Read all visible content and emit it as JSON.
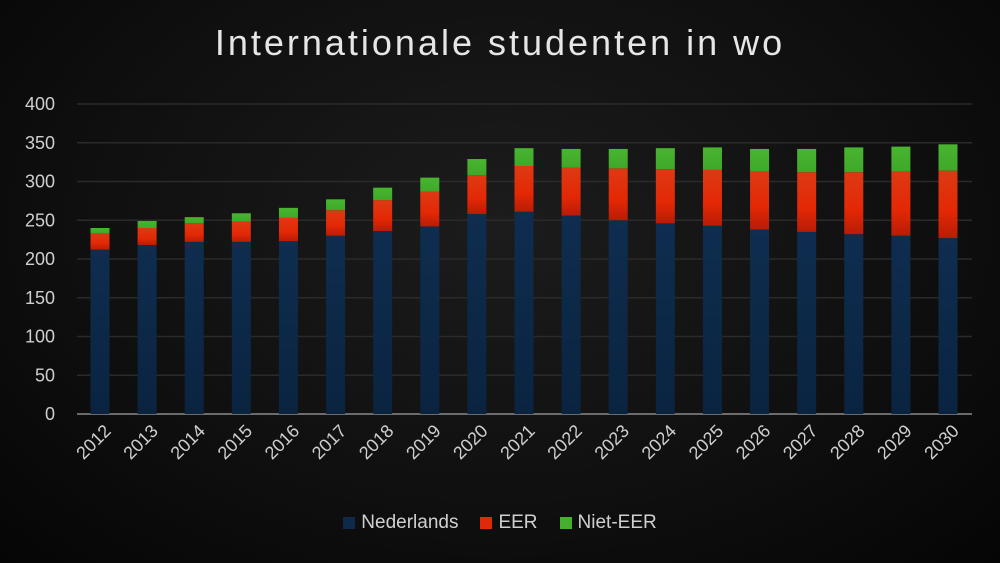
{
  "chart_data": {
    "type": "bar",
    "stacked": true,
    "title": "Internationale studenten in wo",
    "xlabel": "",
    "ylabel": "",
    "ylim": [
      0,
      400
    ],
    "yticks": [
      0,
      50,
      100,
      150,
      200,
      250,
      300,
      350,
      400
    ],
    "grid": true,
    "legend_position": "bottom",
    "categories": [
      "2012",
      "2013",
      "2014",
      "2015",
      "2016",
      "2017",
      "2018",
      "2019",
      "2020",
      "2021",
      "2022",
      "2023",
      "2024",
      "2025",
      "2026",
      "2027",
      "2028",
      "2029",
      "2030"
    ],
    "series": [
      {
        "name": "Nederlands",
        "color": "#0d2a4a",
        "values": [
          212,
          218,
          222,
          222,
          223,
          230,
          236,
          242,
          258,
          261,
          256,
          250,
          246,
          243,
          238,
          235,
          232,
          230,
          227
        ]
      },
      {
        "name": "EER",
        "color": "#e0290a",
        "values": [
          21,
          22,
          24,
          26,
          30,
          33,
          40,
          45,
          50,
          59,
          62,
          67,
          70,
          72,
          75,
          77,
          80,
          83,
          87
        ]
      },
      {
        "name": "Niet-EER",
        "color": "#46b02e",
        "values": [
          7,
          9,
          8,
          11,
          13,
          14,
          16,
          18,
          21,
          23,
          24,
          25,
          27,
          29,
          29,
          30,
          32,
          32,
          34
        ]
      }
    ]
  }
}
